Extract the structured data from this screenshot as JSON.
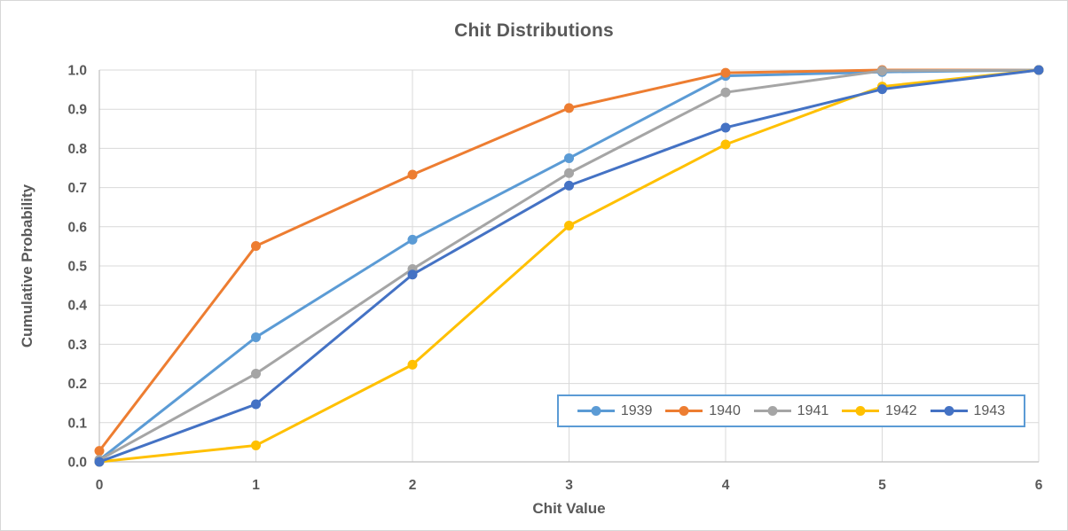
{
  "window": {
    "background": "#ffffff",
    "border_color": "#d7d7d7"
  },
  "colors": {
    "text": "#595959",
    "gridline": "#d9d9d9",
    "axis_line": "#bfbfbf",
    "legend_border": "#5b9bd5",
    "plot_background": "#ffffff"
  },
  "chart_data": {
    "type": "line",
    "title": "Chit Distributions",
    "xlabel": "Chit Value",
    "ylabel": "Cumulative Probability",
    "x": [
      0,
      1,
      2,
      3,
      4,
      5,
      6
    ],
    "x_tick_labels": [
      "0",
      "1",
      "2",
      "3",
      "4",
      "5",
      "6"
    ],
    "y_tick_labels": [
      "0.0",
      "0.1",
      "0.2",
      "0.3",
      "0.4",
      "0.5",
      "0.6",
      "0.7",
      "0.8",
      "0.9",
      "1.0"
    ],
    "xlim": [
      0,
      6
    ],
    "ylim": [
      0.0,
      1.0
    ],
    "y_step": 0.1,
    "grid": true,
    "legend_position": "inside-bottom-right",
    "marker": "circle",
    "series": [
      {
        "name": "1939",
        "color": "#5b9bd5",
        "values": [
          0.005,
          0.318,
          0.567,
          0.775,
          0.985,
          0.995,
          1.0
        ]
      },
      {
        "name": "1940",
        "color": "#ed7d31",
        "values": [
          0.028,
          0.551,
          0.733,
          0.903,
          0.993,
          1.0,
          1.0
        ]
      },
      {
        "name": "1941",
        "color": "#a5a5a5",
        "values": [
          0.005,
          0.225,
          0.492,
          0.737,
          0.943,
          0.998,
          1.0
        ]
      },
      {
        "name": "1942",
        "color": "#ffc000",
        "values": [
          0.0,
          0.042,
          0.248,
          0.603,
          0.81,
          0.958,
          1.0
        ]
      },
      {
        "name": "1943",
        "color": "#4472c4",
        "values": [
          0.0,
          0.147,
          0.478,
          0.705,
          0.853,
          0.951,
          1.0
        ]
      }
    ]
  }
}
